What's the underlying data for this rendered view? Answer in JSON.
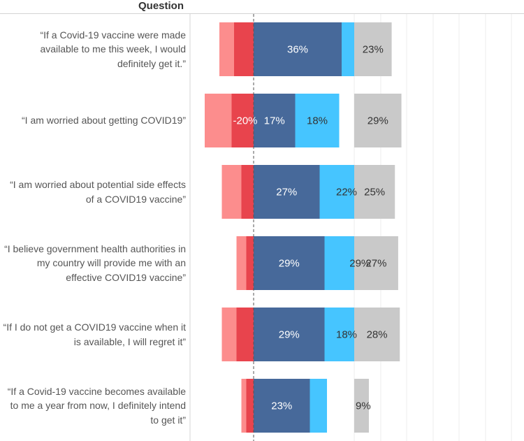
{
  "header": {
    "column_title": "Question"
  },
  "chart_data": {
    "type": "bar",
    "orientation": "horizontal-diverging",
    "categories": [
      "“If a Covid-19 vaccine were made available to me this week, I would definitely get it.”",
      "“I am worried about getting COVID19”",
      "“I am worried about potential side effects of a COVID19 vaccine”",
      "“I believe government health authorities in my country will provide me with an effective COVID19 vaccine”",
      "“If I do not get a COVID19 vaccine when it is available, I will regret it”",
      "“If a Covid-19 vaccine becomes available to me a year from now, I definitely intend to get it”"
    ],
    "series": [
      {
        "color": "#fc8d8d",
        "values": [
          -6,
          -11,
          -8,
          -4,
          -6,
          -2
        ],
        "labels": [
          "",
          "",
          "",
          "",
          "",
          ""
        ]
      },
      {
        "color": "#e8444d",
        "values": [
          -8,
          -9,
          -5,
          -3,
          -7,
          -3
        ],
        "labels": [
          "",
          "-20%",
          "",
          "",
          "",
          ""
        ]
      },
      {
        "color": "#47699a",
        "values": [
          36,
          17,
          27,
          29,
          29,
          23
        ],
        "labels": [
          "36%",
          "17%",
          "27%",
          "29%",
          "29%",
          "23%"
        ]
      },
      {
        "color": "#46c5ff",
        "values": [
          14,
          18,
          22,
          29,
          18,
          7
        ],
        "labels": [
          "",
          "18%",
          "22%",
          "29%",
          "18%",
          ""
        ]
      },
      {
        "color": "#c9c9c9",
        "values": [
          23,
          29,
          25,
          27,
          28,
          9
        ],
        "labels": [
          "23%",
          "29%",
          "25%",
          "27%",
          "28%",
          "9%"
        ]
      }
    ],
    "grid": true
  }
}
